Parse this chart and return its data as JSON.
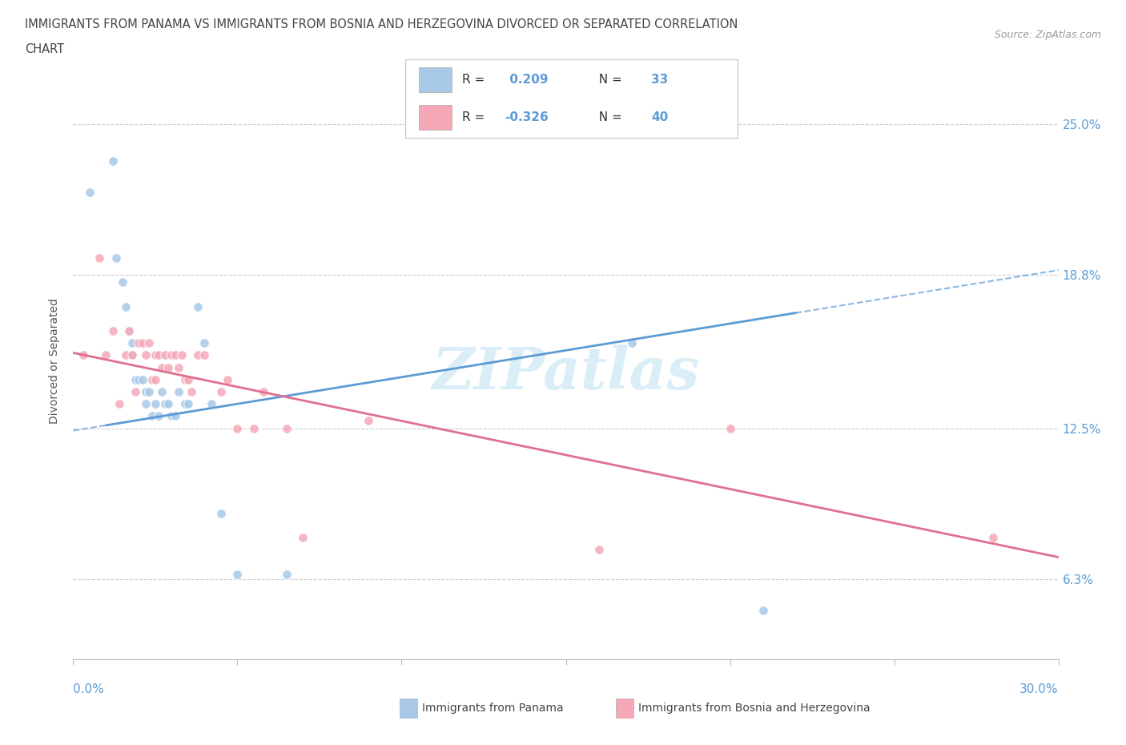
{
  "title_line1": "IMMIGRANTS FROM PANAMA VS IMMIGRANTS FROM BOSNIA AND HERZEGOVINA DIVORCED OR SEPARATED CORRELATION",
  "title_line2": "CHART",
  "source": "Source: ZipAtlas.com",
  "ylabel": "Divorced or Separated",
  "yticks": [
    0.063,
    0.125,
    0.188,
    0.25
  ],
  "ytick_labels": [
    "6.3%",
    "12.5%",
    "18.8%",
    "25.0%"
  ],
  "xlim": [
    0.0,
    0.3
  ],
  "ylim": [
    0.03,
    0.275
  ],
  "legend_r1_label": "R = ",
  "legend_r1_val": " 0.209",
  "legend_r1_n_label": "  N = ",
  "legend_r1_n_val": "33",
  "legend_r2_label": "R = ",
  "legend_r2_val": "-0.326",
  "legend_r2_n_label": "  N = ",
  "legend_r2_n_val": "40",
  "panama_color": "#a8c8e8",
  "bosnia_color": "#f4a8b8",
  "panama_line_color": "#5b9bd5",
  "bosnia_line_color": "#e07090",
  "blue_text_color": "#5b9bd5",
  "watermark_color": "#daeef8",
  "panama_label": "Immigrants from Panama",
  "bosnia_label": "Immigrants from Bosnia and Herzegovina",
  "panama_x": [
    0.005,
    0.012,
    0.013,
    0.015,
    0.016,
    0.017,
    0.018,
    0.018,
    0.019,
    0.02,
    0.021,
    0.022,
    0.022,
    0.023,
    0.024,
    0.025,
    0.026,
    0.027,
    0.028,
    0.029,
    0.03,
    0.031,
    0.032,
    0.034,
    0.035,
    0.038,
    0.04,
    0.042,
    0.045,
    0.05,
    0.065,
    0.17,
    0.21
  ],
  "panama_y": [
    0.222,
    0.235,
    0.195,
    0.185,
    0.175,
    0.165,
    0.16,
    0.155,
    0.145,
    0.145,
    0.145,
    0.14,
    0.135,
    0.14,
    0.13,
    0.135,
    0.13,
    0.14,
    0.135,
    0.135,
    0.13,
    0.13,
    0.14,
    0.135,
    0.135,
    0.175,
    0.16,
    0.135,
    0.09,
    0.065,
    0.065,
    0.16,
    0.05
  ],
  "bosnia_x": [
    0.003,
    0.008,
    0.01,
    0.012,
    0.014,
    0.016,
    0.017,
    0.018,
    0.019,
    0.02,
    0.021,
    0.022,
    0.023,
    0.024,
    0.025,
    0.025,
    0.026,
    0.027,
    0.028,
    0.029,
    0.03,
    0.031,
    0.032,
    0.033,
    0.034,
    0.035,
    0.036,
    0.038,
    0.04,
    0.045,
    0.047,
    0.05,
    0.055,
    0.058,
    0.065,
    0.07,
    0.09,
    0.16,
    0.2,
    0.28
  ],
  "bosnia_y": [
    0.155,
    0.195,
    0.155,
    0.165,
    0.135,
    0.155,
    0.165,
    0.155,
    0.14,
    0.16,
    0.16,
    0.155,
    0.16,
    0.145,
    0.155,
    0.145,
    0.155,
    0.15,
    0.155,
    0.15,
    0.155,
    0.155,
    0.15,
    0.155,
    0.145,
    0.145,
    0.14,
    0.155,
    0.155,
    0.14,
    0.145,
    0.125,
    0.125,
    0.14,
    0.125,
    0.08,
    0.128,
    0.075,
    0.125,
    0.08
  ],
  "pan_slope": 0.22,
  "pan_intercept": 0.124,
  "bos_slope": -0.28,
  "bos_intercept": 0.156
}
